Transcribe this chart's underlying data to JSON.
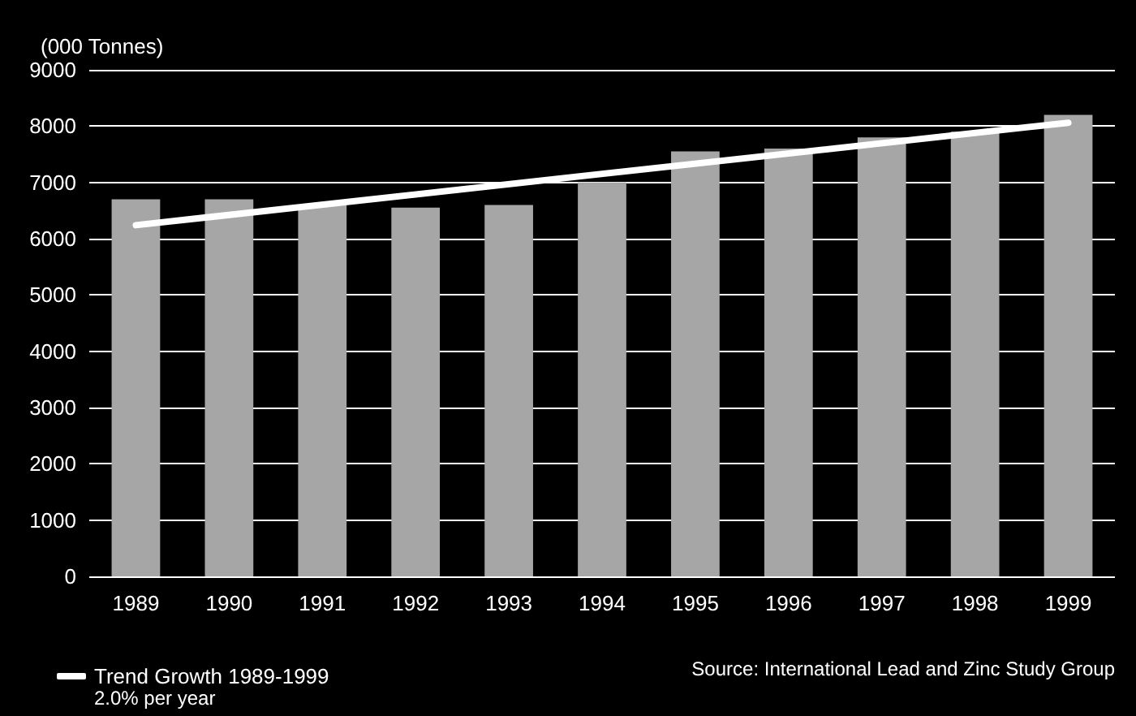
{
  "chart_data": {
    "type": "bar",
    "ylabel": "(000 Tonnes)",
    "categories": [
      "1989",
      "1990",
      "1991",
      "1992",
      "1993",
      "1994",
      "1995",
      "1996",
      "1997",
      "1998",
      "1999"
    ],
    "series": [
      {
        "color": "#a6a6a6",
        "values": [
          6700,
          6700,
          6600,
          6550,
          6600,
          7000,
          7550,
          7600,
          7800,
          7900,
          8200
        ]
      },
      {
        "type": "line",
        "name": "Trend Growth 1989-1999",
        "color": "#ffffff",
        "values": [
          6240,
          null,
          null,
          null,
          null,
          null,
          null,
          null,
          null,
          null,
          8060
        ]
      }
    ],
    "ylim": [
      0,
      9000
    ],
    "yticks": [
      0,
      1000,
      2000,
      3000,
      4000,
      5000,
      6000,
      7000,
      8000,
      9000
    ],
    "grid": "y",
    "legend": "bottom left",
    "marker": "none",
    "annotations": [
      "2.0% per year",
      "Source: International Lead and Zinc Study Group"
    ]
  }
}
